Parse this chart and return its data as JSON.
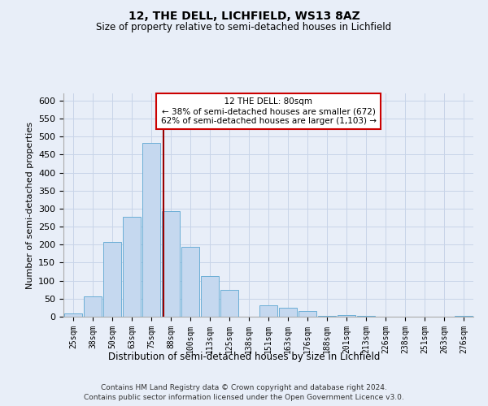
{
  "title1": "12, THE DELL, LICHFIELD, WS13 8AZ",
  "title2": "Size of property relative to semi-detached houses in Lichfield",
  "xlabel": "Distribution of semi-detached houses by size in Lichfield",
  "ylabel": "Number of semi-detached properties",
  "footnote1": "Contains HM Land Registry data © Crown copyright and database right 2024.",
  "footnote2": "Contains public sector information licensed under the Open Government Licence v3.0.",
  "bar_labels": [
    "25sqm",
    "38sqm",
    "50sqm",
    "63sqm",
    "75sqm",
    "88sqm",
    "100sqm",
    "113sqm",
    "125sqm",
    "138sqm",
    "151sqm",
    "163sqm",
    "176sqm",
    "188sqm",
    "201sqm",
    "213sqm",
    "226sqm",
    "238sqm",
    "251sqm",
    "263sqm",
    "276sqm"
  ],
  "bar_values": [
    8,
    57,
    207,
    278,
    483,
    293,
    193,
    112,
    75,
    0,
    31,
    25,
    15,
    3,
    5,
    2,
    0,
    0,
    0,
    0,
    2
  ],
  "bar_color": "#c5d8ef",
  "bar_edge_color": "#6baed6",
  "property_label": "12 THE DELL: 80sqm",
  "pct_smaller": 38,
  "count_smaller": 672,
  "pct_larger": 62,
  "count_larger": 1103,
  "vline_x_index": 4.62,
  "vline_color": "#990000",
  "annotation_box_color": "#cc0000",
  "ylim": [
    0,
    620
  ],
  "yticks": [
    0,
    50,
    100,
    150,
    200,
    250,
    300,
    350,
    400,
    450,
    500,
    550,
    600
  ],
  "grid_color": "#c8d4e8",
  "background_color": "#e8eef8",
  "figsize": [
    6.0,
    5.0
  ],
  "dpi": 100
}
